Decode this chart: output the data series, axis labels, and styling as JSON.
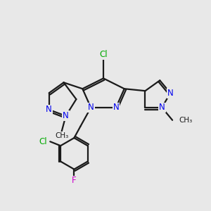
{
  "bg_color": "#e8e8e8",
  "bond_color": "#1a1a1a",
  "N_color": "#0000ee",
  "Cl_color": "#00aa00",
  "F_color": "#cc00cc",
  "line_width": 1.6,
  "font_size": 8.5,
  "xlim": [
    0,
    10
  ],
  "ylim": [
    0,
    10
  ]
}
